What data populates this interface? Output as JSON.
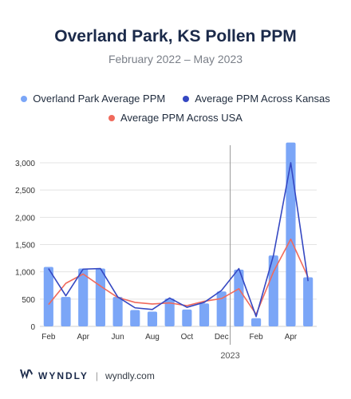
{
  "header": {
    "title": "Overland Park, KS Pollen PPM",
    "subtitle": "February 2022 – May 2023"
  },
  "legend": {
    "bar_label": "Overland Park Average PPM",
    "kansas_label": "Average PPM Across Kansas",
    "usa_label": "Average PPM Across USA"
  },
  "colors": {
    "bar": "#7ba6f7",
    "kansas": "#3548c2",
    "usa": "#f06a5c",
    "grid": "#e3e3e3",
    "divider": "#999999"
  },
  "footer": {
    "brand": "WYNDLY",
    "separator": "|",
    "site": "wyndly.com"
  },
  "chart_data": {
    "type": "bar",
    "categories": [
      "Feb 2022",
      "Mar 2022",
      "Apr 2022",
      "May 2022",
      "Jun 2022",
      "Jul 2022",
      "Aug 2022",
      "Sep 2022",
      "Oct 2022",
      "Nov 2022",
      "Dec 2022",
      "Jan 2023",
      "Feb 2023",
      "Mar 2023",
      "Apr 2023",
      "May 2023"
    ],
    "x_tick_labels": [
      {
        "index": 0,
        "label": "Feb"
      },
      {
        "index": 2,
        "label": "Apr"
      },
      {
        "index": 4,
        "label": "Jun"
      },
      {
        "index": 6,
        "label": "Aug"
      },
      {
        "index": 8,
        "label": "Oct"
      },
      {
        "index": 10,
        "label": "Dec"
      },
      {
        "index": 12,
        "label": "Feb"
      },
      {
        "index": 14,
        "label": "Apr"
      }
    ],
    "year_marker": {
      "after_index": 10,
      "label": "2023"
    },
    "series": [
      {
        "name": "Overland Park Average PPM",
        "type": "bar",
        "values": [
          1090,
          540,
          1060,
          1060,
          540,
          300,
          270,
          510,
          310,
          420,
          640,
          1040,
          150,
          1300,
          3370,
          900
        ]
      },
      {
        "name": "Average PPM Across Kansas",
        "type": "line",
        "values": [
          1060,
          560,
          1050,
          1060,
          540,
          340,
          310,
          520,
          350,
          440,
          660,
          1060,
          180,
          1300,
          3000,
          830
        ]
      },
      {
        "name": "Average PPM Across USA",
        "type": "line",
        "values": [
          400,
          790,
          960,
          740,
          530,
          440,
          410,
          430,
          380,
          460,
          510,
          690,
          220,
          1000,
          1600,
          900
        ]
      }
    ],
    "y_ticks": [
      {
        "value": 0,
        "label": "0"
      },
      {
        "value": 500,
        "label": "500"
      },
      {
        "value": 1000,
        "label": "1,000"
      },
      {
        "value": 1500,
        "label": "1,500"
      },
      {
        "value": 2000,
        "label": "2,000"
      },
      {
        "value": 2500,
        "label": "2,500"
      },
      {
        "value": 3000,
        "label": "3,000"
      }
    ],
    "ylim": [
      0,
      3380
    ],
    "grid": true,
    "legend_position": "top"
  }
}
